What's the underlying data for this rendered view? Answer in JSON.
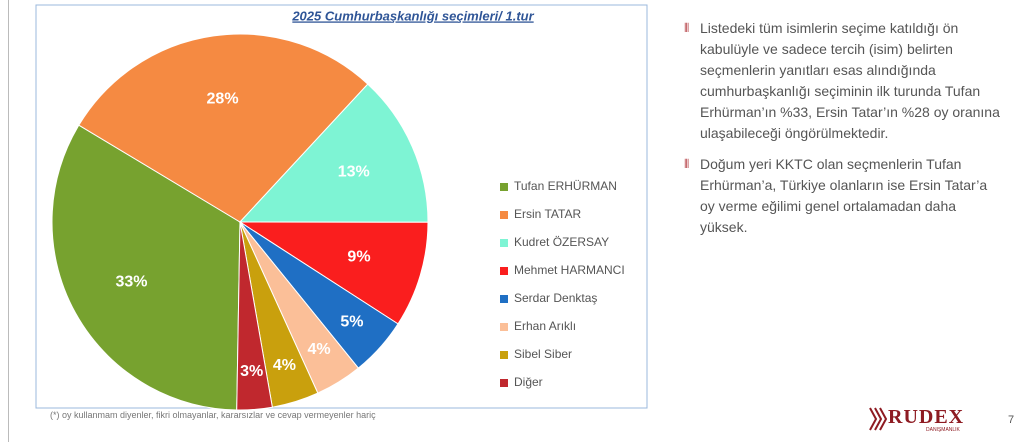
{
  "chart_data": {
    "type": "pie",
    "title": "2025 Cumhurbaşkanlığı seçimleri/ 1.tur",
    "categories": [
      "Tufan ERHÜRMAN",
      "Ersin TATAR",
      "Kudret ÖZERSAY",
      "Mehmet HARMANCI",
      "Serdar Denktaş",
      "Erhan Arıklı",
      "Sibel Siber",
      "Diğer"
    ],
    "values": [
      33,
      28,
      13,
      9,
      5,
      4,
      4,
      3
    ],
    "value_labels": [
      "33%",
      "28%",
      "13%",
      "9%",
      "5%",
      "4%",
      "4%",
      "3%"
    ],
    "colors": [
      "#77a22f",
      "#f58a42",
      "#7ef4d4",
      "#fa1e1e",
      "#1f6fc4",
      "#fbbf98",
      "#c9a00d",
      "#c0282e"
    ],
    "legend": "right"
  },
  "footnote": "(*) oy kullanmam diyenler, fikri olmayanlar, kararsızlar ve cevap vermeyenler hariç",
  "notes": [
    "Listedeki tüm isimlerin seçime katıldığı ön kabulüyle ve sadece tercih (isim) belirten seçmenlerin yanıtları esas alındığında cumhurbaşkanlığı seçiminin ilk turunda Tufan Erhürman’ın %33, Ersin Tatar’ın %28 oy oranına ulaşabileceği öngörülmektedir.",
    "Doğum yeri KKTC olan seçmenlerin Tufan Erhürman’a, Türkiye olanların ise Ersin Tatar’a oy verme eğilimi genel ortalamadan daha yüksek."
  ],
  "logo": {
    "name": "RUDEX",
    "tagline": "DANIŞMANLIK"
  },
  "page_number": "7"
}
